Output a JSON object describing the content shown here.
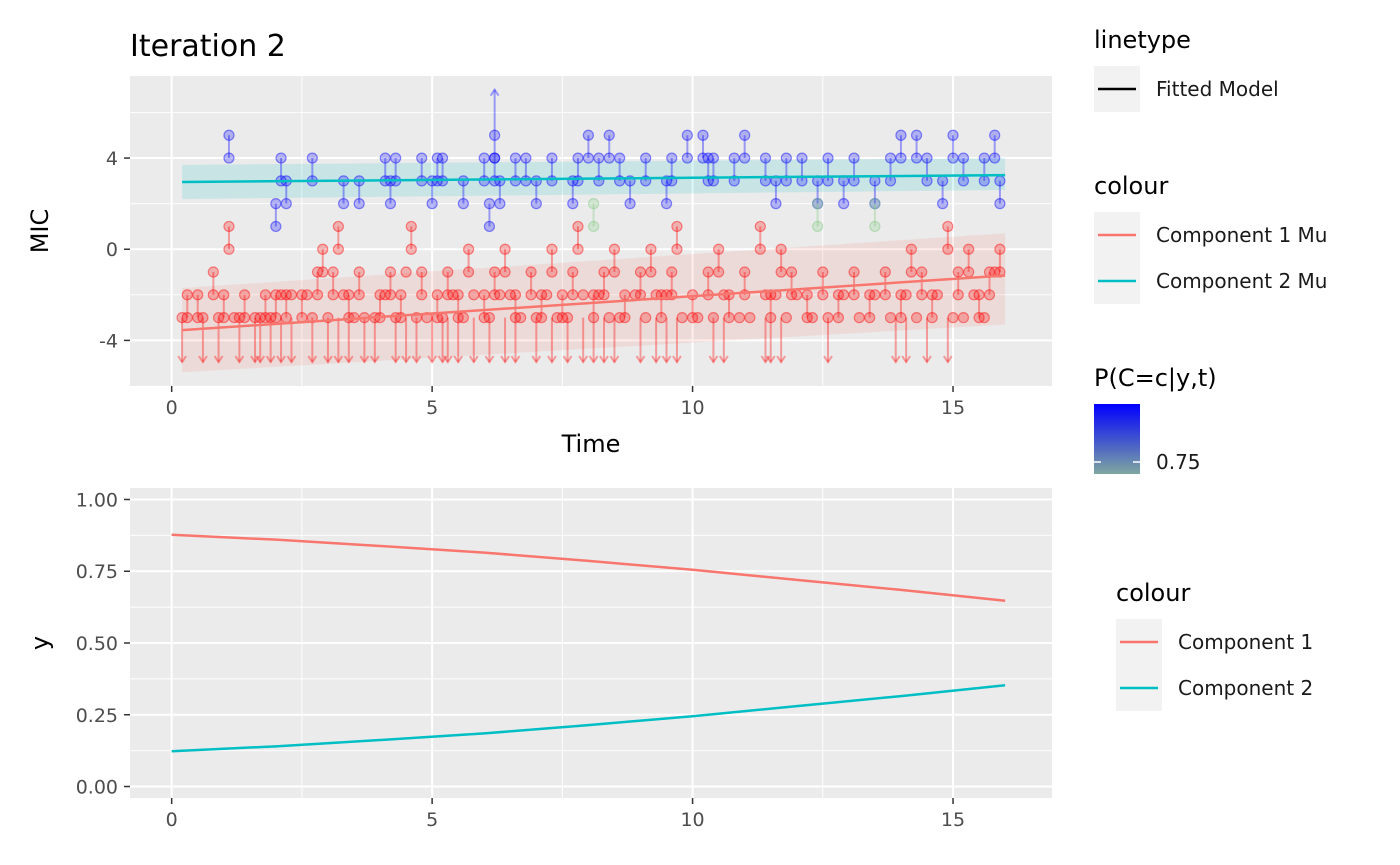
{
  "chart_data": [
    {
      "type": "scatter",
      "title": "Iteration 2",
      "xlabel": "Time",
      "ylabel": "MIC",
      "xlim": [
        -0.8,
        16.9
      ],
      "ylim": [
        -6.0,
        7.6
      ],
      "xticks": [
        0,
        5,
        10,
        15
      ],
      "yticks": [
        -4,
        0,
        4
      ],
      "xtick_labels": [
        "0",
        "5",
        "10",
        "15"
      ],
      "ytick_labels": [
        "-4",
        "0",
        "4"
      ],
      "grid": true,
      "series": [
        {
          "name": "Component 1 Mu",
          "type": "line",
          "color": "#F8766D",
          "x": [
            0.2,
            16.0
          ],
          "y": [
            -3.55,
            -1.15
          ],
          "band_lower": [
            -5.4,
            -3.3
          ],
          "band_upper": [
            -1.7,
            0.7
          ]
        },
        {
          "name": "Component 2 Mu",
          "type": "line",
          "color": "#00BFC4",
          "x": [
            0.2,
            16.0
          ],
          "y": [
            2.95,
            3.25
          ],
          "band_lower": [
            2.2,
            2.6
          ],
          "band_upper": [
            3.7,
            4.0
          ]
        }
      ],
      "intervals": [
        {
          "comp": 2,
          "intervals": [
            [
              1.1,
              4,
              5
            ],
            [
              2.0,
              1,
              2
            ],
            [
              2.1,
              3,
              4
            ],
            [
              2.2,
              2,
              3
            ],
            [
              2.7,
              3,
              4
            ],
            [
              3.3,
              2,
              3
            ],
            [
              3.6,
              2,
              3
            ],
            [
              4.1,
              3,
              4
            ],
            [
              4.2,
              2,
              3
            ],
            [
              4.3,
              3,
              4
            ],
            [
              4.8,
              3,
              4
            ],
            [
              5.0,
              2,
              3
            ],
            [
              5.1,
              3,
              4
            ],
            [
              5.2,
              3,
              4
            ],
            [
              5.6,
              2,
              3
            ],
            [
              6.0,
              3,
              4
            ],
            [
              6.1,
              1,
              2
            ],
            [
              6.2,
              4,
              5
            ],
            [
              6.2,
              3,
              4
            ],
            [
              6.3,
              2,
              3
            ],
            [
              6.6,
              3,
              4
            ],
            [
              6.8,
              3,
              4
            ],
            [
              7.0,
              2,
              3
            ],
            [
              7.3,
              3,
              4
            ],
            [
              7.7,
              2,
              3
            ],
            [
              7.8,
              3,
              4
            ],
            [
              8.0,
              4,
              5
            ],
            [
              8.2,
              3,
              4
            ],
            [
              8.4,
              4,
              5
            ],
            [
              8.6,
              3,
              4
            ],
            [
              8.8,
              2,
              3
            ],
            [
              9.1,
              3,
              4
            ],
            [
              9.5,
              2,
              3
            ],
            [
              9.6,
              3,
              4
            ],
            [
              9.9,
              4,
              5
            ],
            [
              10.2,
              4,
              5
            ],
            [
              10.3,
              3,
              4
            ],
            [
              10.4,
              3,
              4
            ],
            [
              10.8,
              3,
              4
            ],
            [
              11.0,
              4,
              5
            ],
            [
              11.4,
              3,
              4
            ],
            [
              11.6,
              2,
              3
            ],
            [
              11.8,
              3,
              4
            ],
            [
              12.1,
              3,
              4
            ],
            [
              12.4,
              2,
              3
            ],
            [
              12.6,
              3,
              4
            ],
            [
              12.9,
              2,
              3
            ],
            [
              13.1,
              3,
              4
            ],
            [
              13.5,
              2,
              3
            ],
            [
              13.8,
              3,
              4
            ],
            [
              14.0,
              4,
              5
            ],
            [
              14.3,
              4,
              5
            ],
            [
              14.5,
              3,
              4
            ],
            [
              14.8,
              2,
              3
            ],
            [
              15.0,
              4,
              5
            ],
            [
              15.2,
              3,
              4
            ],
            [
              15.6,
              3,
              4
            ],
            [
              15.8,
              4,
              5
            ],
            [
              15.9,
              2,
              3
            ]
          ]
        },
        {
          "comp": 1,
          "intervals": [
            [
              0.3,
              -3,
              -2
            ],
            [
              0.5,
              -3,
              -2
            ],
            [
              0.8,
              -2,
              -1
            ],
            [
              1.0,
              -3,
              -2
            ],
            [
              1.1,
              0,
              1
            ],
            [
              1.4,
              -3,
              -2
            ],
            [
              1.8,
              -3,
              -2
            ],
            [
              2.0,
              -3,
              -2
            ],
            [
              2.2,
              -3,
              -2
            ],
            [
              2.5,
              -3,
              -2
            ],
            [
              2.8,
              -2,
              -1
            ],
            [
              2.9,
              -1,
              0
            ],
            [
              3.1,
              -2,
              -1
            ],
            [
              3.2,
              0,
              1
            ],
            [
              3.4,
              -3,
              -2
            ],
            [
              3.6,
              -2,
              -1
            ],
            [
              4.0,
              -3,
              -2
            ],
            [
              4.2,
              -2,
              -1
            ],
            [
              4.4,
              -3,
              -2
            ],
            [
              4.6,
              0,
              1
            ],
            [
              4.8,
              -2,
              -1
            ],
            [
              5.1,
              -3,
              -2
            ],
            [
              5.3,
              -2,
              -1
            ],
            [
              5.5,
              -3,
              -2
            ],
            [
              5.7,
              -1,
              0
            ],
            [
              6.0,
              -3,
              -2
            ],
            [
              6.2,
              -2,
              -1
            ],
            [
              6.4,
              -1,
              0
            ],
            [
              6.6,
              -3,
              -2
            ],
            [
              6.9,
              -2,
              -1
            ],
            [
              7.1,
              -3,
              -2
            ],
            [
              7.3,
              -1,
              0
            ],
            [
              7.5,
              -3,
              -2
            ],
            [
              7.7,
              -2,
              -1
            ],
            [
              7.8,
              0,
              1
            ],
            [
              8.1,
              -3,
              -2
            ],
            [
              8.3,
              -2,
              -1
            ],
            [
              8.5,
              -1,
              0
            ],
            [
              8.7,
              -3,
              -2
            ],
            [
              9.0,
              -2,
              -1
            ],
            [
              9.2,
              -1,
              0
            ],
            [
              9.4,
              -3,
              -2
            ],
            [
              9.6,
              -2,
              -1
            ],
            [
              9.7,
              0,
              1
            ],
            [
              10.0,
              -3,
              -2
            ],
            [
              10.3,
              -2,
              -1
            ],
            [
              10.5,
              -1,
              0
            ],
            [
              10.7,
              -3,
              -2
            ],
            [
              11.0,
              -2,
              -1
            ],
            [
              11.3,
              0,
              1
            ],
            [
              11.5,
              -3,
              -2
            ],
            [
              11.7,
              -1,
              0
            ],
            [
              11.9,
              -2,
              -1
            ],
            [
              12.2,
              -3,
              -2
            ],
            [
              12.5,
              -2,
              -1
            ],
            [
              12.8,
              -3,
              -2
            ],
            [
              13.1,
              -2,
              -1
            ],
            [
              13.4,
              -3,
              -2
            ],
            [
              13.7,
              -2,
              -1
            ],
            [
              14.0,
              -3,
              -2
            ],
            [
              14.2,
              -1,
              0
            ],
            [
              14.4,
              -2,
              -1
            ],
            [
              14.6,
              -3,
              -2
            ],
            [
              14.9,
              0,
              1
            ],
            [
              15.1,
              -2,
              -1
            ],
            [
              15.3,
              -1,
              0
            ],
            [
              15.5,
              -3,
              -2
            ],
            [
              15.7,
              -2,
              -1
            ],
            [
              15.9,
              -1,
              0
            ]
          ]
        },
        {
          "comp": 0,
          "intervals": [
            [
              8.1,
              1,
              2
            ],
            [
              12.4,
              1,
              2
            ],
            [
              13.5,
              1,
              2
            ]
          ]
        }
      ],
      "points": [
        {
          "comp": 1,
          "points": [
            [
              0.2,
              -3
            ],
            [
              0.6,
              -3
            ],
            [
              0.9,
              -3
            ],
            [
              1.2,
              -3
            ],
            [
              1.3,
              -3
            ],
            [
              1.6,
              -3
            ],
            [
              1.7,
              -3
            ],
            [
              1.9,
              -3
            ],
            [
              2.1,
              -2
            ],
            [
              2.3,
              -2
            ],
            [
              2.6,
              -2
            ],
            [
              2.7,
              -3
            ],
            [
              3.0,
              -3
            ],
            [
              3.3,
              -2
            ],
            [
              3.5,
              -3
            ],
            [
              3.7,
              -3
            ],
            [
              3.9,
              -3
            ],
            [
              4.1,
              -2
            ],
            [
              4.3,
              -3
            ],
            [
              4.5,
              -1
            ],
            [
              4.7,
              -3
            ],
            [
              4.9,
              -3
            ],
            [
              5.2,
              -3
            ],
            [
              5.4,
              -2
            ],
            [
              5.6,
              -3
            ],
            [
              5.8,
              -2
            ],
            [
              6.1,
              -3
            ],
            [
              6.3,
              -2
            ],
            [
              6.5,
              -2
            ],
            [
              6.7,
              -3
            ],
            [
              7.0,
              -3
            ],
            [
              7.2,
              -2
            ],
            [
              7.4,
              -3
            ],
            [
              7.6,
              -3
            ],
            [
              7.9,
              -2
            ],
            [
              8.2,
              -2
            ],
            [
              8.4,
              -3
            ],
            [
              8.6,
              -3
            ],
            [
              8.9,
              -2
            ],
            [
              9.1,
              -3
            ],
            [
              9.3,
              -2
            ],
            [
              9.5,
              -2
            ],
            [
              9.8,
              -3
            ],
            [
              10.1,
              -3
            ],
            [
              10.4,
              -3
            ],
            [
              10.6,
              -2
            ],
            [
              10.9,
              -3
            ],
            [
              11.1,
              -3
            ],
            [
              11.4,
              -2
            ],
            [
              11.6,
              -2
            ],
            [
              11.8,
              -3
            ],
            [
              12.0,
              -2
            ],
            [
              12.3,
              -3
            ],
            [
              12.6,
              -3
            ],
            [
              12.9,
              -2
            ],
            [
              13.2,
              -3
            ],
            [
              13.5,
              -2
            ],
            [
              13.8,
              -3
            ],
            [
              14.1,
              -2
            ],
            [
              14.3,
              -3
            ],
            [
              14.7,
              -2
            ],
            [
              15.0,
              -3
            ],
            [
              15.2,
              -3
            ],
            [
              15.4,
              -2
            ],
            [
              15.6,
              -3
            ],
            [
              15.8,
              -1
            ]
          ]
        }
      ],
      "censored_low": [
        0.2,
        0.6,
        0.9,
        1.3,
        1.6,
        1.7,
        1.9,
        2.1,
        2.3,
        2.7,
        3.0,
        3.2,
        3.4,
        3.7,
        3.9,
        4.3,
        4.5,
        4.7,
        5.0,
        5.2,
        5.3,
        5.5,
        5.8,
        6.1,
        6.4,
        6.6,
        7.0,
        7.3,
        7.6,
        7.9,
        8.1,
        8.3,
        8.5,
        9.0,
        9.3,
        9.5,
        9.7,
        10.4,
        10.6,
        11.4,
        11.5,
        11.7,
        12.6,
        13.9,
        14.1,
        14.5,
        14.9
      ],
      "censored_high": [
        6.2
      ]
    },
    {
      "type": "line",
      "title": "",
      "xlabel": "",
      "ylabel": "y",
      "xlim": [
        -0.8,
        16.9
      ],
      "ylim": [
        -0.04,
        1.04
      ],
      "xticks": [
        0,
        5,
        10,
        15
      ],
      "yticks": [
        0.0,
        0.25,
        0.5,
        0.75,
        1.0
      ],
      "xtick_labels": [
        "0",
        "5",
        "10",
        "15"
      ],
      "ytick_labels": [
        "0.00",
        "0.25",
        "0.50",
        "0.75",
        "1.00"
      ],
      "grid": true,
      "series": [
        {
          "name": "Component 1",
          "color": "#F8766D",
          "x": [
            0,
            2,
            4,
            6,
            8,
            10,
            12,
            14,
            16
          ],
          "values": [
            0.877,
            0.86,
            0.838,
            0.815,
            0.786,
            0.755,
            0.72,
            0.685,
            0.647
          ]
        },
        {
          "name": "Component 2",
          "color": "#00BFC4",
          "x": [
            0,
            2,
            4,
            6,
            8,
            10,
            12,
            14,
            16
          ],
          "values": [
            0.123,
            0.14,
            0.162,
            0.185,
            0.214,
            0.245,
            0.28,
            0.315,
            0.353
          ]
        }
      ]
    }
  ],
  "legends": {
    "linetype": {
      "title": "linetype",
      "items": [
        "Fitted Model"
      ]
    },
    "colour1": {
      "title": "colour",
      "items": [
        {
          "label": "Component 1 Mu",
          "color": "#F8766D"
        },
        {
          "label": "Component 2 Mu",
          "color": "#00BFC4"
        }
      ]
    },
    "gradient": {
      "title": "P(C=c|y,t)",
      "label": "0.75",
      "color_high": "#0000FF",
      "color_low": "#7FA7A0"
    },
    "colour2": {
      "title": "colour",
      "items": [
        {
          "label": "Component 1",
          "color": "#F8766D"
        },
        {
          "label": "Component 2",
          "color": "#00BFC4"
        }
      ]
    }
  }
}
